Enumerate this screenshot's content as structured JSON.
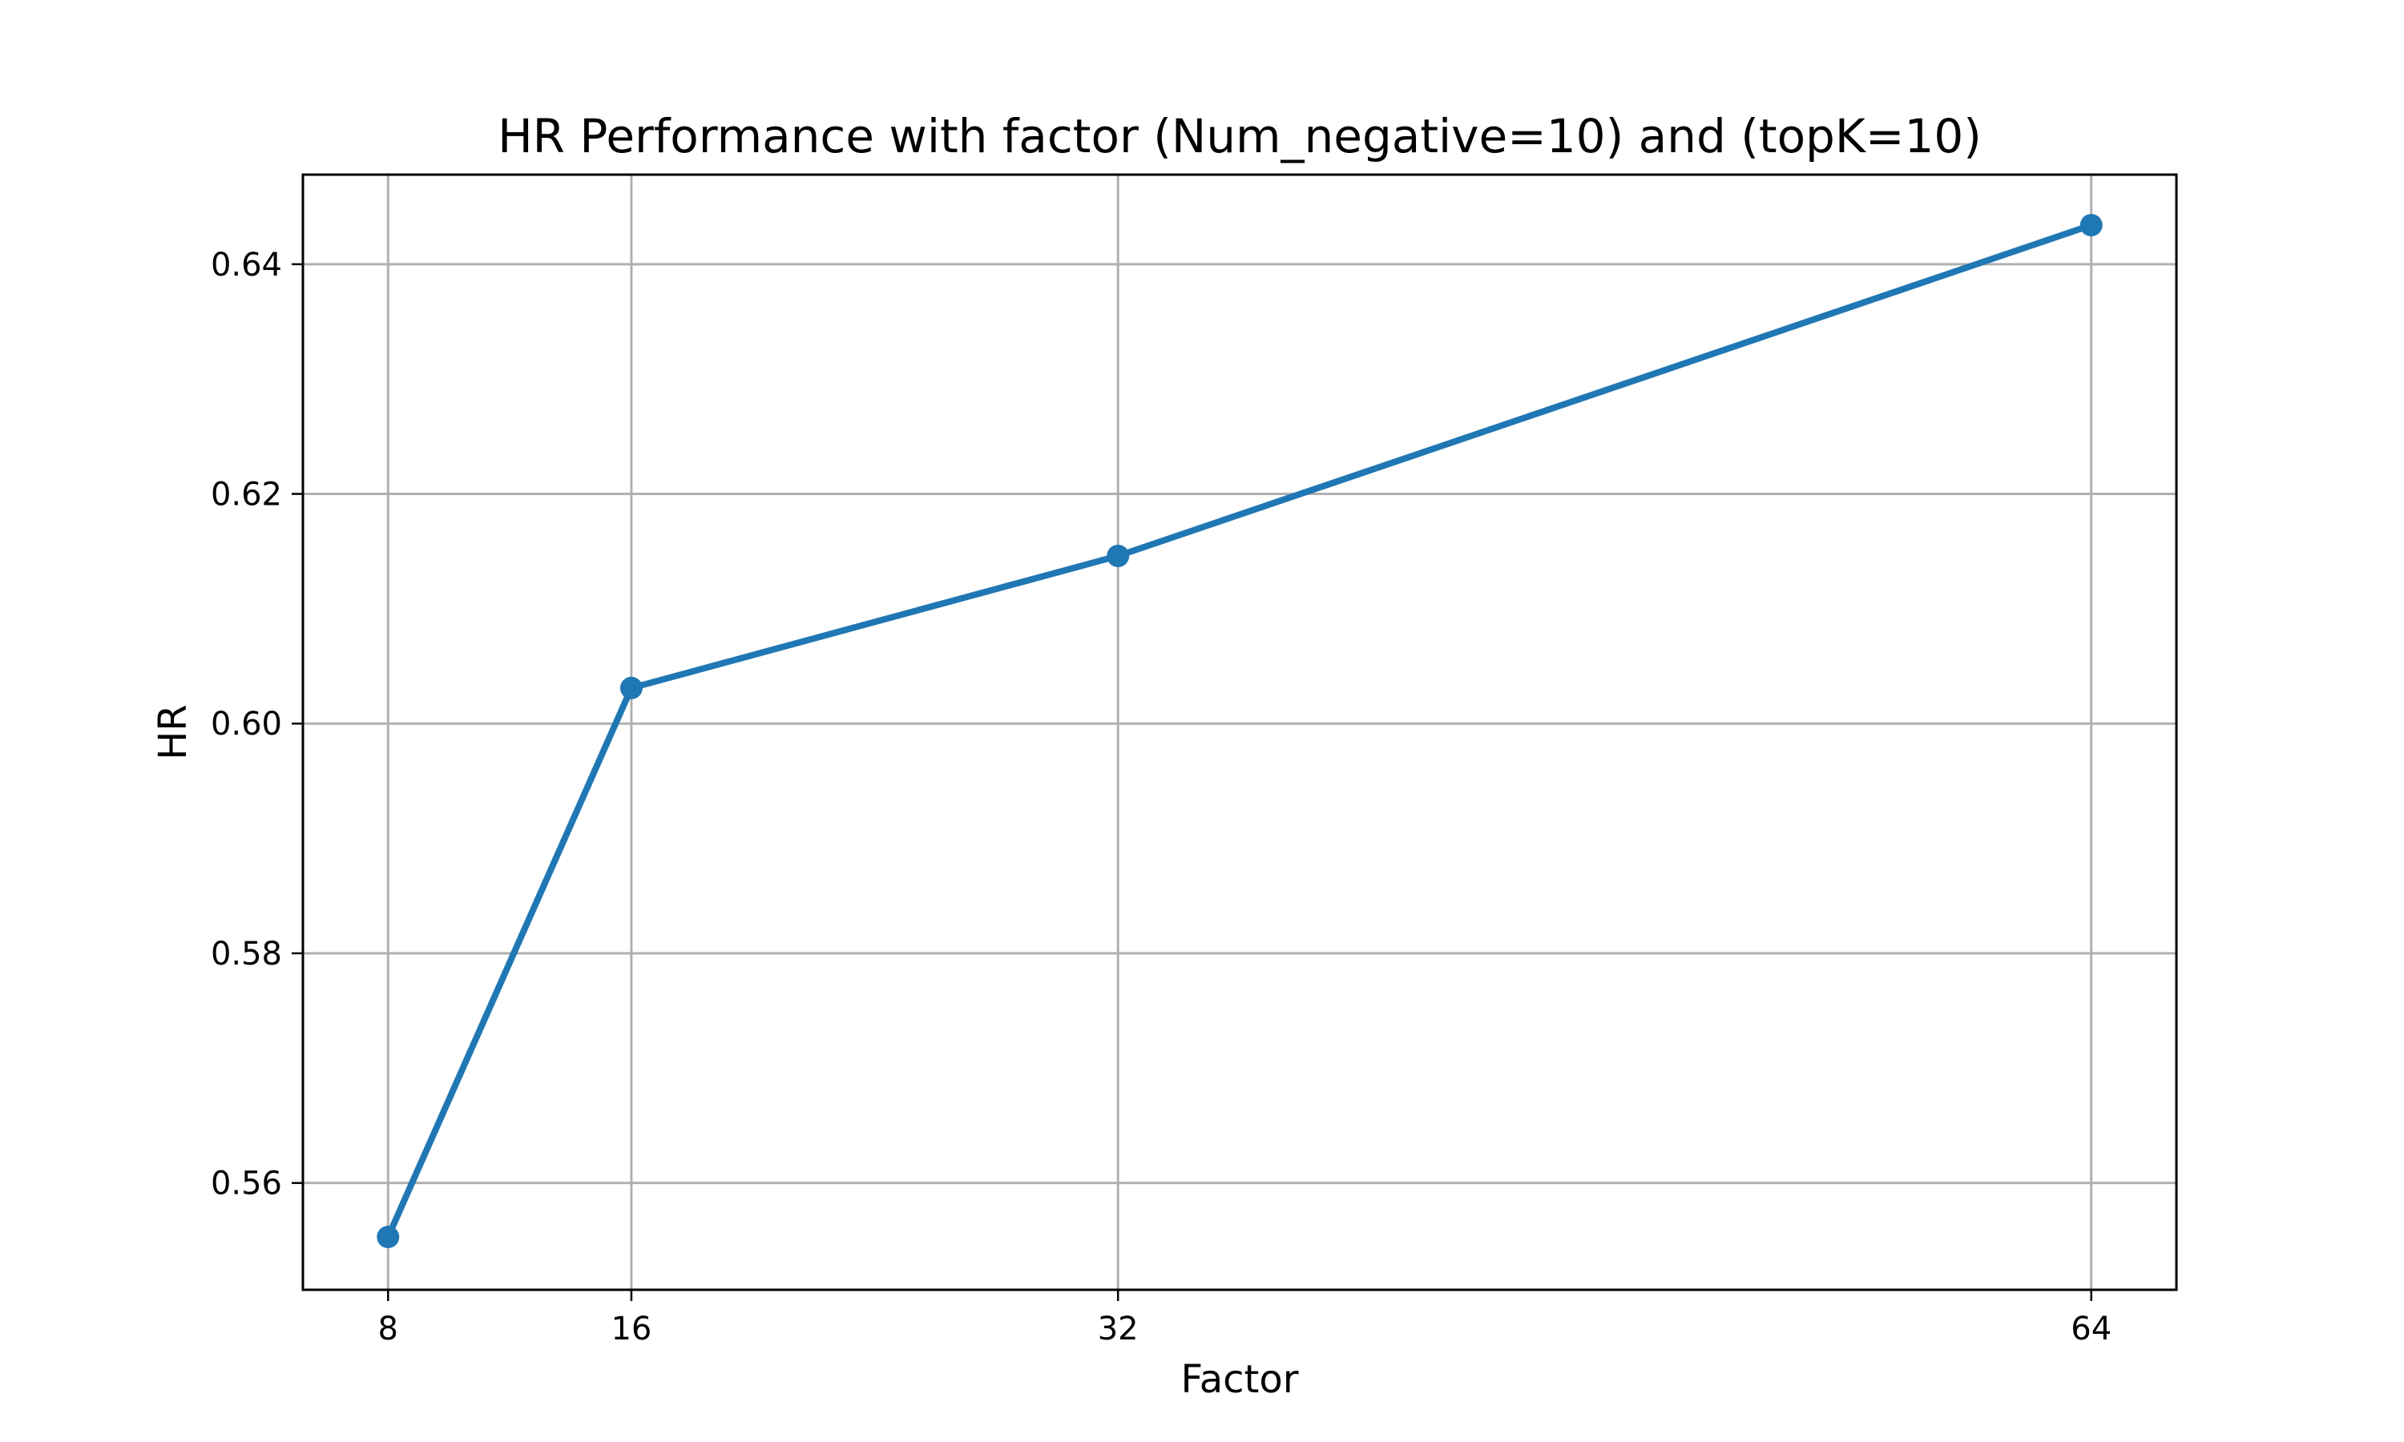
{
  "chart_data": {
    "type": "line",
    "title": "HR Performance with factor (Num_negative=10) and (topK=10)",
    "xlabel": "Factor",
    "ylabel": "HR",
    "x": [
      8,
      16,
      32,
      64
    ],
    "series": [
      {
        "values": [
          0.5553,
          0.6031,
          0.6146,
          0.6434
        ],
        "color": "#1f77b4",
        "marker": "circle"
      }
    ],
    "xticks": [
      8,
      16,
      32,
      64
    ],
    "xtick_labels": [
      "8",
      "16",
      "32",
      "64"
    ],
    "yticks": [
      0.56,
      0.58,
      0.6,
      0.62,
      0.64
    ],
    "ytick_labels": [
      "0.56",
      "0.58",
      "0.60",
      "0.62",
      "0.64"
    ],
    "xlim": [
      5.2,
      66.8
    ],
    "ylim": [
      0.5507,
      0.6478
    ],
    "grid": true,
    "legend": false
  }
}
